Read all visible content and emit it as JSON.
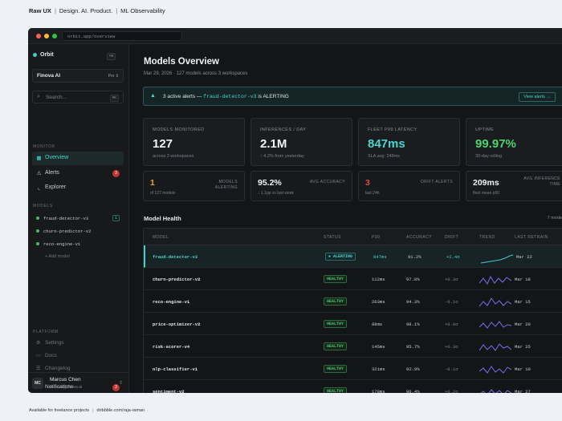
{
  "header": {
    "brand": "Raw UX",
    "tagline": "Design. AI. Product.",
    "project": "ML Observability"
  },
  "footer": {
    "availability": "Available for freelance projects",
    "link": "dribbble.com/raja-raman"
  },
  "browser": {
    "url": "orbit.app/overview"
  },
  "sidebar": {
    "brand": "Orbit",
    "brand_shortcut": "⌘K",
    "workspace": "Finova AI",
    "plan": "Pro",
    "search_placeholder": "Search...",
    "search_shortcut": "⌘K",
    "monitor_label": "MONITOR",
    "nav": [
      {
        "label": "Overview",
        "icon": "grid-icon"
      },
      {
        "label": "Alerts",
        "icon": "warning-icon",
        "badge": "3"
      },
      {
        "label": "Explorer",
        "icon": "chart-icon"
      }
    ],
    "models_label": "MODELS",
    "models": [
      {
        "name": "fraud-detector-v3",
        "count": "1"
      },
      {
        "name": "churn-predictor-v2"
      },
      {
        "name": "reco-engine-v1"
      }
    ],
    "add_model": "+ Add model",
    "platform_label": "PLATFORM",
    "platform": [
      {
        "label": "Settings",
        "icon": "gear-icon"
      },
      {
        "label": "Docs",
        "icon": "doc-icon"
      },
      {
        "label": "Changelog",
        "icon": "changelog-icon"
      }
    ],
    "notifications": {
      "label": "Notifications",
      "count": "3"
    },
    "user": {
      "initials": "MC",
      "name": "Marcus Chen",
      "email": "marcus@finova.ai"
    }
  },
  "main": {
    "title": "Models Overview",
    "subtitle": "Mar 29, 2026 · 127 models across 3 workspaces",
    "alert": {
      "prefix": "3 active alerts — ",
      "model": "fraud-detector-v3",
      "suffix": " is ALERTING",
      "button": "View alerts →"
    },
    "cards": [
      {
        "label": "MODELS MONITORED",
        "value": "127",
        "sub": "across 3 workspaces",
        "color": "#f1f3f5"
      },
      {
        "label": "INFERENCES / DAY",
        "value": "2.1M",
        "sub": "↑ 4.2% from yesterday",
        "color": "#f1f3f5"
      },
      {
        "label": "FLEET P99 LATENCY",
        "value": "847ms",
        "sub": "SLA avg: 248ms",
        "color": "#49d5cc"
      },
      {
        "label": "UPTIME",
        "value": "99.97%",
        "sub": "30-day rolling",
        "color": "#4cd46e"
      }
    ],
    "small_cards": [
      {
        "value": "1",
        "sub": "of 127 models",
        "label": "MODELS ALERTING",
        "color": "#f0a020"
      },
      {
        "value": "95.2%",
        "sub": "↓ 1.1pp vs last week",
        "label": "AVG ACCURACY",
        "color": "#f1f3f5"
      },
      {
        "value": "3",
        "sub": "last 24h",
        "label": "DRIFT ALERTS",
        "color": "#e04a4a"
      },
      {
        "value": "209ms",
        "sub": "fleet mean p50",
        "label": "AVG INFERENCE TIME",
        "color": "#f1f3f5"
      }
    ],
    "health_title": "Model Health",
    "health_count": "7 mode",
    "columns": [
      "MODEL",
      "STATUS",
      "P99",
      "ACCURACY",
      "DRIFT",
      "TREND",
      "LAST RETRAIN"
    ],
    "rows": [
      {
        "model": "fraud-detector-v3",
        "status": "● ALERTING",
        "p99": "847ms",
        "accuracy": "91.2%",
        "drift": "+2.4σ",
        "retrain": "Mar 22",
        "state": "alert"
      },
      {
        "model": "churn-predictor-v2",
        "status": "HEALTHY",
        "p99": "112ms",
        "accuracy": "97.8%",
        "drift": "+0.3σ",
        "retrain": "Mar 18",
        "state": "ok"
      },
      {
        "model": "reco-engine-v1",
        "status": "HEALTHY",
        "p99": "203ms",
        "accuracy": "94.3%",
        "drift": "-0.1σ",
        "retrain": "Mar 15",
        "state": "ok"
      },
      {
        "model": "price-optimizer-v2",
        "status": "HEALTHY",
        "p99": "88ms",
        "accuracy": "98.1%",
        "drift": "+0.0σ",
        "retrain": "Mar 20",
        "state": "ok"
      },
      {
        "model": "risk-scorer-v4",
        "status": "HEALTHY",
        "p99": "145ms",
        "accuracy": "95.7%",
        "drift": "+0.3σ",
        "retrain": "Mar 25",
        "state": "ok"
      },
      {
        "model": "nlp-classifier-v1",
        "status": "HEALTHY",
        "p99": "321ms",
        "accuracy": "92.9%",
        "drift": "-0.1σ",
        "retrain": "Mar 10",
        "state": "ok"
      },
      {
        "model": "sentiment-v2",
        "status": "HEALTHY",
        "p99": "178ms",
        "accuracy": "96.4%",
        "drift": "+0.2σ",
        "retrain": "Mar 27",
        "state": "ok"
      }
    ]
  }
}
